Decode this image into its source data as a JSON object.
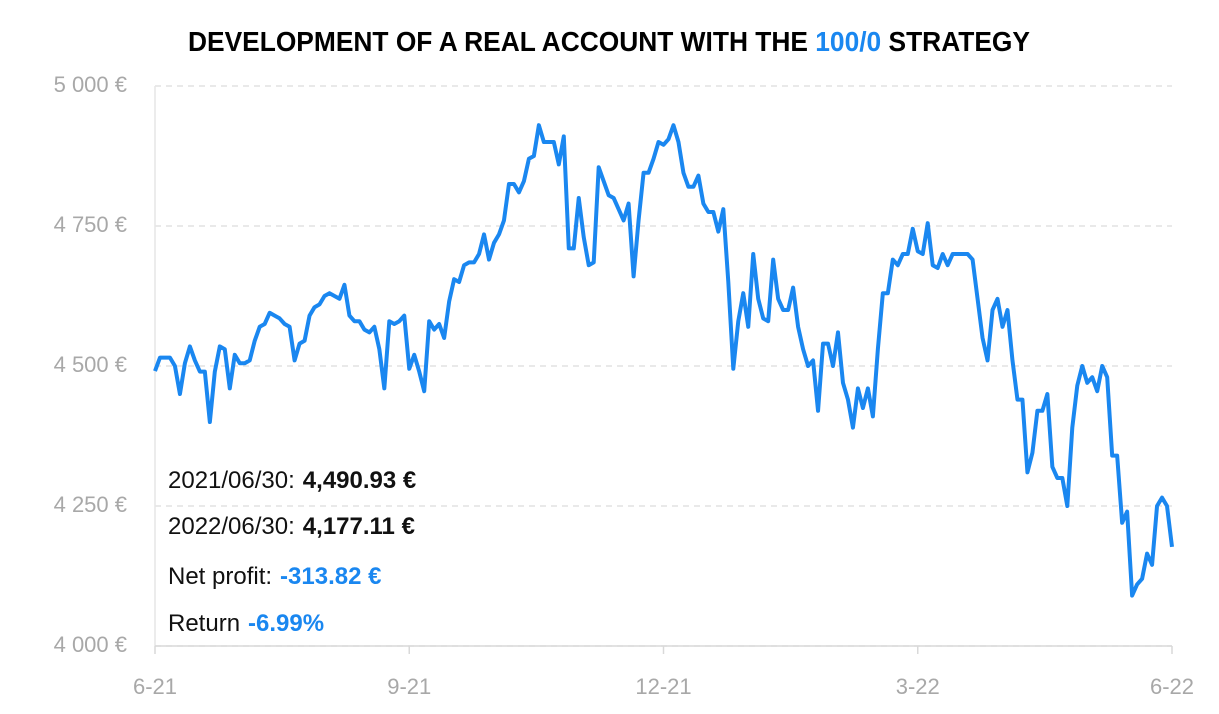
{
  "chart_data": {
    "type": "line",
    "title": [
      "DEVELOPMENT OF A REAL ACCOUNT WITH THE ",
      "100/0",
      " STRATEGY"
    ],
    "title_colors": [
      "#000000",
      "#1a87f0",
      "#000000"
    ],
    "categories": [
      "6-21",
      null,
      null,
      null,
      null,
      null,
      null,
      null,
      null,
      null,
      null,
      null,
      null,
      null,
      null,
      null,
      null,
      null,
      null,
      null,
      null,
      null,
      null,
      null,
      null,
      null,
      null,
      null,
      null,
      null,
      null,
      null,
      null,
      null,
      null,
      null,
      null,
      null,
      null,
      null,
      null,
      null,
      null,
      null,
      null,
      null,
      null,
      null,
      null,
      null,
      null,
      "9-21",
      null,
      null,
      null,
      null,
      null,
      null,
      null,
      null,
      null,
      null,
      null,
      null,
      null,
      null,
      null,
      null,
      null,
      null,
      null,
      null,
      null,
      null,
      null,
      null,
      null,
      null,
      null,
      null,
      null,
      null,
      null,
      null,
      null,
      null,
      null,
      null,
      null,
      null,
      null,
      null,
      null,
      null,
      null,
      null,
      null,
      null,
      null,
      null,
      null,
      null,
      "12-21",
      null,
      null,
      null,
      null,
      null,
      null,
      null,
      null,
      null,
      null,
      null,
      null,
      null,
      null,
      null,
      null,
      null,
      null,
      null,
      null,
      null,
      null,
      null,
      null,
      null,
      null,
      null,
      null,
      null,
      null,
      null,
      null,
      null,
      null,
      null,
      null,
      null,
      null,
      null,
      null,
      null,
      null,
      null,
      null,
      null,
      null,
      null,
      null,
      null,
      null,
      "3-22",
      null,
      null,
      null,
      null,
      null,
      null,
      null,
      null,
      null,
      null,
      null,
      null,
      null,
      null,
      null,
      null,
      null,
      null,
      null,
      null,
      null,
      null,
      null,
      null,
      null,
      null,
      null,
      null,
      null,
      null,
      null,
      null,
      null,
      null,
      null,
      null,
      null,
      null,
      null,
      null,
      null,
      null,
      null,
      null,
      null,
      null,
      null,
      null,
      null,
      null,
      "6-22"
    ],
    "series": [
      {
        "color": "#1a87f0",
        "values": [
          4490.93,
          4515,
          4515,
          4515,
          4500,
          4450,
          4505,
          4535,
          4510,
          4490,
          4490,
          4400,
          4490,
          4535,
          4530,
          4460,
          4520,
          4505,
          4505,
          4510,
          4545,
          4570,
          4575,
          4595,
          4590,
          4585,
          4575,
          4570,
          4510,
          4540,
          4545,
          4590,
          4605,
          4610,
          4625,
          4630,
          4625,
          4620,
          4645,
          4590,
          4580,
          4580,
          4565,
          4560,
          4570,
          4530,
          4460,
          4580,
          4575,
          4580,
          4590,
          4495,
          4520,
          4490,
          4455,
          4580,
          4565,
          4575,
          4550,
          4615,
          4655,
          4650,
          4680,
          4685,
          4685,
          4700,
          4735,
          4690,
          4720,
          4735,
          4760,
          4825,
          4825,
          4810,
          4830,
          4870,
          4875,
          4930,
          4900,
          4900,
          4900,
          4860,
          4910,
          4710,
          4710,
          4800,
          4730,
          4680,
          4685,
          4855,
          4830,
          4805,
          4800,
          4780,
          4760,
          4790,
          4660,
          4760,
          4845,
          4845,
          4870,
          4900,
          4895,
          4905,
          4930,
          4900,
          4845,
          4820,
          4820,
          4840,
          4790,
          4775,
          4775,
          4740,
          4780,
          4650,
          4495,
          4580,
          4630,
          4570,
          4700,
          4620,
          4585,
          4580,
          4690,
          4620,
          4600,
          4600,
          4640,
          4570,
          4530,
          4500,
          4510,
          4420,
          4540,
          4540,
          4500,
          4560,
          4470,
          4440,
          4390,
          4460,
          4425,
          4460,
          4410,
          4530,
          4630,
          4630,
          4690,
          4680,
          4700,
          4700,
          4745,
          4705,
          4700,
          4755,
          4680,
          4675,
          4700,
          4680,
          4700,
          4700,
          4700,
          4700,
          4690,
          4620,
          4550,
          4510,
          4600,
          4620,
          4570,
          4600,
          4510,
          4440,
          4440,
          4310,
          4345,
          4420,
          4420,
          4450,
          4320,
          4300,
          4300,
          4250,
          4390,
          4465,
          4500,
          4470,
          4480,
          4455,
          4500,
          4480,
          4340,
          4340,
          4220,
          4240,
          4090,
          4110,
          4120,
          4165,
          4145,
          4250,
          4265,
          4250,
          4177.11
        ]
      }
    ],
    "ylim": [
      4000,
      5000
    ],
    "yticks": [
      {
        "value": 4000,
        "label": "4 000 €"
      },
      {
        "value": 4250,
        "label": "4 250 €"
      },
      {
        "value": 4500,
        "label": "4 500 €"
      },
      {
        "value": 4750,
        "label": "4 750 €"
      },
      {
        "value": 5000,
        "label": "5 000 €"
      }
    ],
    "grid": true,
    "annotations": [
      {
        "label": "2021/06/30:",
        "value": "4,490.93 €",
        "color": "#111111"
      },
      {
        "label": "2022/06/30:",
        "value": "4,177.11 €",
        "color": "#111111"
      },
      {
        "label": "Net profit:",
        "value": "-313.82 €",
        "color": "#1a87f0"
      },
      {
        "label": "Return",
        "value": "-6.99%",
        "color": "#1a87f0"
      }
    ]
  }
}
